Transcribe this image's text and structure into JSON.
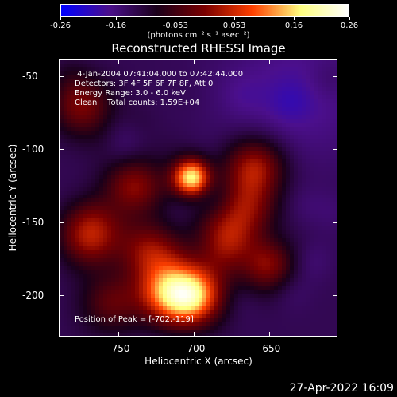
{
  "chart_data": {
    "type": "heatmap",
    "title": "Reconstructed RHESSI Image",
    "xlabel": "Heliocentric X (arcsec)",
    "ylabel": "Heliocentric Y (arcsec)",
    "xlim": [
      -790,
      -605
    ],
    "ylim": [
      -228,
      -38
    ],
    "x_ticks": [
      "-750",
      "-700",
      "-650"
    ],
    "x_tick_values": [
      -750,
      -700,
      -650
    ],
    "y_ticks": [
      "-50",
      "-100",
      "-150",
      "-200"
    ],
    "y_tick_values": [
      -50,
      -100,
      -150,
      -200
    ],
    "colorbar": {
      "ticks": [
        "-0.26",
        "-0.16",
        "-0.053",
        "0.053",
        "0.16",
        "0.26"
      ],
      "tick_values": [
        -0.26,
        -0.16,
        -0.053,
        0.053,
        0.16,
        0.26
      ],
      "range": [
        -0.26,
        0.26
      ],
      "colors": [
        "#0000ff",
        "#4b0f8c",
        "#1a001a",
        "#7a0000",
        "#ff4000",
        "#ffff80",
        "#ffffff"
      ]
    },
    "units": "(photons cm⁻² s⁻¹ asec⁻²)",
    "peak": {
      "x": -702,
      "y": -119
    },
    "sources": [
      {
        "x": -702,
        "y": -119,
        "value": 0.26
      },
      {
        "x": -700,
        "y": -200,
        "value": 0.19
      },
      {
        "x": -718,
        "y": -198,
        "value": 0.17
      },
      {
        "x": -770,
        "y": -160,
        "value": 0.13
      },
      {
        "x": -660,
        "y": -112,
        "value": 0.13
      },
      {
        "x": -740,
        "y": -125,
        "value": 0.11
      },
      {
        "x": -680,
        "y": -165,
        "value": 0.12
      },
      {
        "x": -775,
        "y": -70,
        "value": 0.1
      },
      {
        "x": -730,
        "y": -170,
        "value": 0.11
      },
      {
        "x": -650,
        "y": -180,
        "value": 0.09
      },
      {
        "x": -755,
        "y": -205,
        "value": 0.08
      },
      {
        "x": -665,
        "y": -140,
        "value": 0.1
      }
    ]
  },
  "info": {
    "line1": " 4-Jan-2004 07:41:04.000 to 07:42:44.000",
    "line2": "Detectors: 3F 4F 5F 6F 7F 8F, Att 0",
    "line3": "Energy Range: 3.0 - 6.0 keV",
    "line4": "Clean    Total counts: 1.59E+04",
    "peak_label": "Position of Peak = [-702,-119]"
  },
  "footer": {
    "date": "27-Apr-2022 16:09"
  }
}
